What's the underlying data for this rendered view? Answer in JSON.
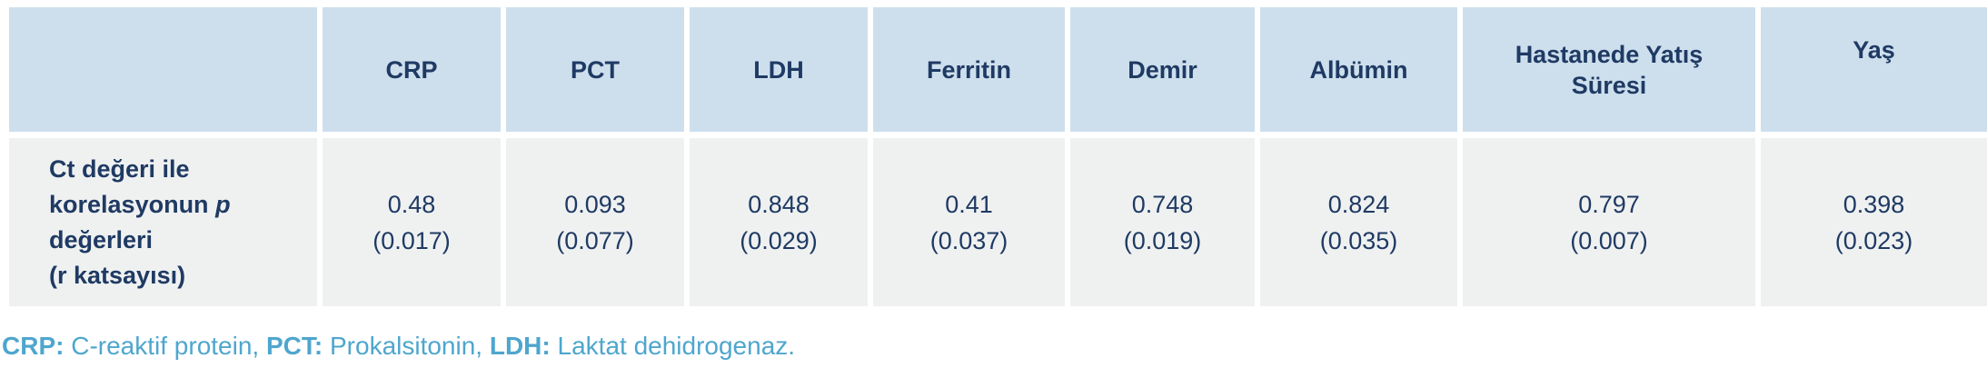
{
  "table": {
    "title_cell": "",
    "row_label": {
      "line1": "Ct değeri ile",
      "line2_text": "korelasyonun ",
      "line2_italic": "p",
      "line3": "değerleri",
      "line4": "(r katsayısı)"
    },
    "columns": [
      {
        "header": "CRP",
        "value": "0.48",
        "r": "(0.017)"
      },
      {
        "header": "PCT",
        "value": "0.093",
        "r": "(0.077)"
      },
      {
        "header": "LDH",
        "value": "0.848",
        "r": "(0.029)"
      },
      {
        "header": "Ferritin",
        "value": "0.41",
        "r": "(0.037)"
      },
      {
        "header": "Demir",
        "value": "0.748",
        "r": "(0.019)"
      },
      {
        "header": "Albümin",
        "value": "0.824",
        "r": "(0.035)"
      },
      {
        "header": "Hastanede Yatış Süresi",
        "value": "0.797",
        "r": "(0.007)"
      },
      {
        "header": "Yaş",
        "value": "0.398",
        "r": "(0.023)"
      }
    ]
  },
  "footnote": {
    "crp_abbr": "CRP:",
    "crp_def": " C-reaktif protein, ",
    "pct_abbr": "PCT:",
    "pct_def": " Prokalsitonin, ",
    "ldh_abbr": "LDH:",
    "ldh_def": " Laktat dehidrogenaz."
  },
  "colors": {
    "header_bg": "#cddfed",
    "body_bg": "#eff1f1",
    "text_navy": "#1f3a63",
    "footnote_blue": "#4ea6ce"
  }
}
